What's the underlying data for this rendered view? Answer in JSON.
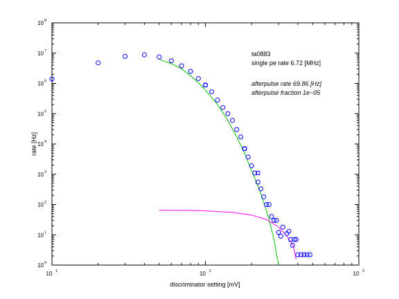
{
  "chart_data": {
    "type": "scatter",
    "xscale": "log",
    "yscale": "log",
    "xlim": [
      10,
      1000
    ],
    "ylim": [
      1,
      100000000
    ],
    "xlabel": "discriminator setting [mV]",
    "ylabel": "rate [Hz]",
    "x_ticks": [
      {
        "value": 10,
        "base": "10",
        "exp": "1"
      },
      {
        "value": 100,
        "base": "10",
        "exp": "2"
      },
      {
        "value": 1000,
        "base": "10",
        "exp": "3"
      }
    ],
    "y_ticks": [
      {
        "value": 1,
        "base": "10",
        "exp": "0"
      },
      {
        "value": 10,
        "base": "10",
        "exp": "1"
      },
      {
        "value": 100,
        "base": "10",
        "exp": "2"
      },
      {
        "value": 1000,
        "base": "10",
        "exp": "3"
      },
      {
        "value": 10000,
        "base": "10",
        "exp": "4"
      },
      {
        "value": 100000,
        "base": "10",
        "exp": "5"
      },
      {
        "value": 1000000,
        "base": "10",
        "exp": "6"
      },
      {
        "value": 10000000,
        "base": "10",
        "exp": "7"
      },
      {
        "value": 100000000,
        "base": "10",
        "exp": "8"
      }
    ],
    "annotations": [
      {
        "text": "ta0883",
        "style": "normal"
      },
      {
        "text": "single pe rate 6.72 [MHz]",
        "style": "normal"
      },
      {
        "text": "afterpulse rate 69.86 [Hz]",
        "style": "italic"
      },
      {
        "text": "afterpulse fraction 1e−05",
        "style": "italic"
      }
    ],
    "series": [
      {
        "type": "scatter",
        "marker": "circle",
        "color": "#0000ff",
        "points": [
          [
            10,
            1400000
          ],
          [
            20,
            4800000
          ],
          [
            30,
            7800000
          ],
          [
            40,
            8800000
          ],
          [
            50,
            7500000
          ],
          [
            60,
            5600000
          ],
          [
            70,
            3800000
          ],
          [
            80,
            2500000
          ],
          [
            90,
            1450000
          ],
          [
            100,
            880000
          ],
          [
            110,
            530000
          ],
          [
            120,
            280000
          ],
          [
            130,
            160000
          ],
          [
            140,
            100000
          ],
          [
            150,
            60000
          ],
          [
            160,
            30000
          ],
          [
            170,
            17000
          ],
          [
            180,
            7000
          ],
          [
            190,
            3700
          ],
          [
            200,
            1900
          ],
          [
            210,
            1100
          ],
          [
            220,
            550
          ],
          [
            230,
            330
          ],
          [
            240,
            180
          ],
          [
            250,
            100
          ],
          [
            260,
            100
          ],
          [
            270,
            40
          ],
          [
            280,
            30
          ],
          [
            290,
            30
          ],
          [
            300,
            12
          ],
          [
            310,
            9
          ],
          [
            320,
            18
          ],
          [
            340,
            11
          ],
          [
            350,
            13
          ],
          [
            360,
            7
          ],
          [
            370,
            4.5
          ],
          [
            380,
            7
          ],
          [
            390,
            7
          ],
          [
            400,
            2.2
          ],
          [
            420,
            2.2
          ],
          [
            440,
            2.2
          ],
          [
            460,
            2.2
          ],
          [
            480,
            2.2
          ]
        ]
      },
      {
        "type": "scatter",
        "marker": "square",
        "color": "#0000ff",
        "points": [
          [
            100,
            880000
          ],
          [
            180,
            7000
          ],
          [
            220,
            1100
          ]
        ]
      },
      {
        "type": "line",
        "color": "#00c000",
        "points": [
          [
            50,
            6200000
          ],
          [
            60,
            4500000
          ],
          [
            70,
            3000000
          ],
          [
            80,
            1800000
          ],
          [
            90,
            1050000
          ],
          [
            100,
            600000
          ],
          [
            120,
            200000
          ],
          [
            140,
            60000
          ],
          [
            160,
            17000
          ],
          [
            180,
            5000
          ],
          [
            200,
            1300
          ],
          [
            220,
            420
          ],
          [
            240,
            120
          ],
          [
            260,
            33
          ],
          [
            280,
            7
          ],
          [
            300,
            1
          ]
        ]
      },
      {
        "type": "line",
        "color": "#ff00ff",
        "points": [
          [
            50,
            65
          ],
          [
            80,
            64
          ],
          [
            100,
            62
          ],
          [
            150,
            55
          ],
          [
            200,
            45
          ],
          [
            250,
            32
          ],
          [
            300,
            18
          ],
          [
            340,
            9
          ],
          [
            370,
            4.8
          ],
          [
            380,
            3
          ],
          [
            390,
            1.6
          ]
        ]
      }
    ]
  }
}
